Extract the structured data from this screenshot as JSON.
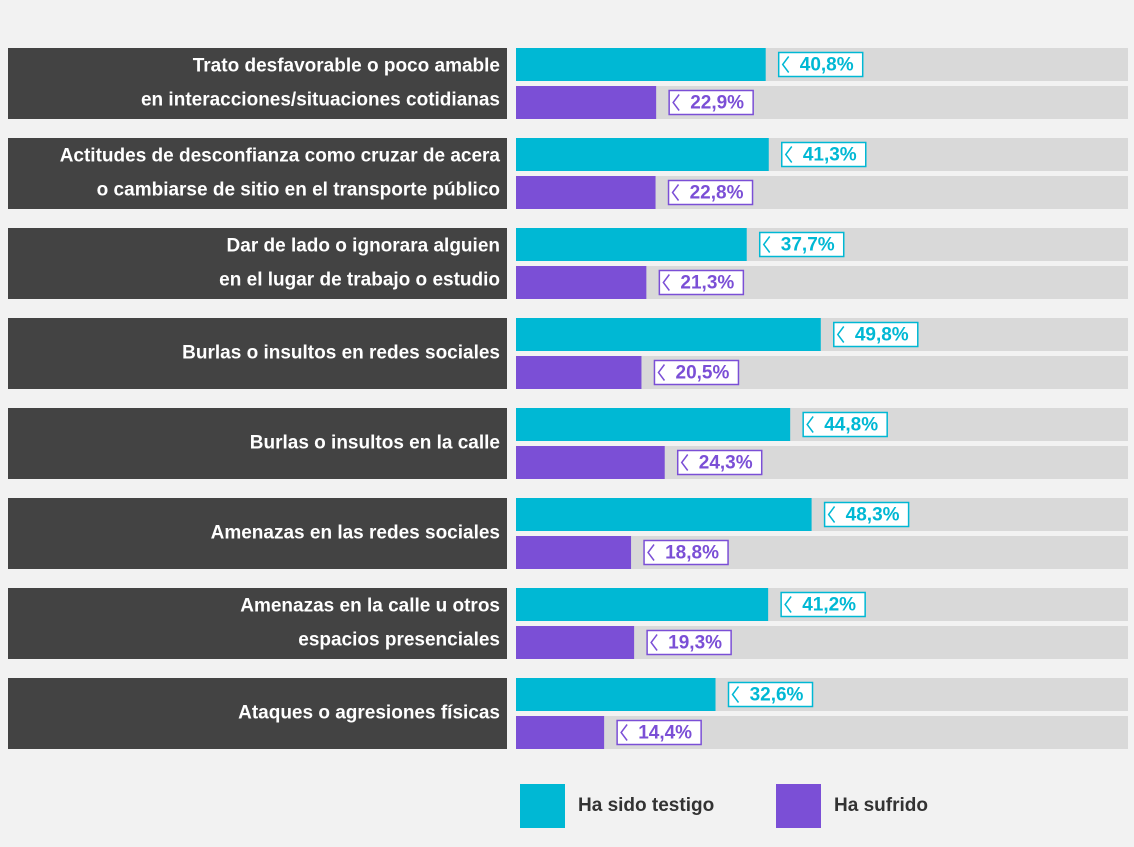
{
  "chart_data": {
    "type": "bar",
    "categories": [
      [
        "Trato desfavorable o poco amable",
        "en interacciones/situaciones cotidianas"
      ],
      [
        "Actitudes de desconfianza como cruzar de acera",
        "o cambiarse de sitio en el transporte público"
      ],
      [
        "Dar de lado o ignorara alguien",
        "en el lugar de trabajo o estudio"
      ],
      [
        "Burlas o insultos en redes sociales"
      ],
      [
        "Burlas o insultos en la calle"
      ],
      [
        "Amenazas en las redes sociales"
      ],
      [
        "Amenazas en la calle u otros",
        "espacios presenciales"
      ],
      [
        "Ataques o agresiones físicas"
      ]
    ],
    "series": [
      {
        "name": "Ha sido testigo",
        "color": "#00b8d4",
        "values": [
          40.8,
          41.3,
          37.7,
          49.8,
          44.8,
          48.3,
          41.2,
          32.6
        ],
        "value_labels": [
          "40,8%",
          "41,3%",
          "37,7%",
          "49,8%",
          "44,8%",
          "48,3%",
          "41,2%",
          "32,6%"
        ]
      },
      {
        "name": "Ha sufrido",
        "color": "#7b4fd6",
        "values": [
          22.9,
          22.8,
          21.3,
          20.5,
          24.3,
          18.8,
          19.3,
          14.4
        ],
        "value_labels": [
          "22,9%",
          "22,8%",
          "21,3%",
          "20,5%",
          "24,3%",
          "18,8%",
          "19,3%",
          "14,4%"
        ]
      }
    ],
    "xlim": [
      0,
      100
    ]
  }
}
